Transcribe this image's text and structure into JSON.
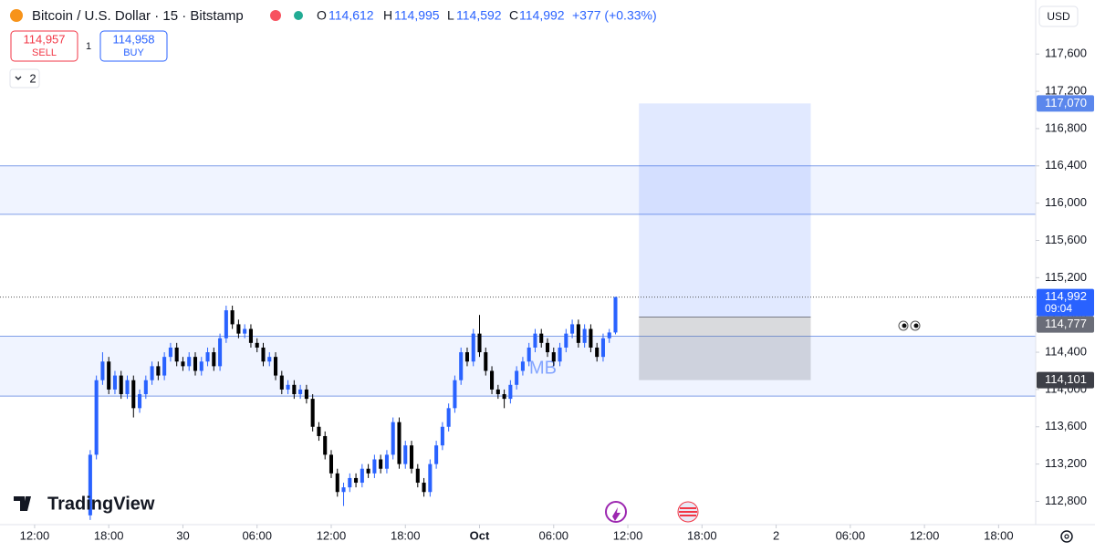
{
  "header": {
    "symbol": "Bitcoin / U.S. Dollar · 15 · Bitstamp",
    "o_label": "O",
    "o": "114,612",
    "h_label": "H",
    "h": "114,995",
    "l_label": "L",
    "l": "114,592",
    "c_label": "C",
    "c": "114,992",
    "change": "+377 (+0.33%)"
  },
  "trade": {
    "sell_price": "114,957",
    "sell": "SELL",
    "quantity": "1",
    "buy_price": "114,958",
    "buy": "BUY"
  },
  "indicators_toggle": "2",
  "currency": "USD",
  "logo": "TradingView",
  "chart_data": {
    "type": "candlestick",
    "annotation": "MB",
    "up_color": "#2962ff",
    "down_color": "#000000",
    "grid": false,
    "ylim": [
      112550,
      118180
    ],
    "yticks": [
      {
        "value": 112800,
        "label": "112,800"
      },
      {
        "value": 113200,
        "label": "113,200"
      },
      {
        "value": 113600,
        "label": "113,600"
      },
      {
        "value": 114000,
        "label": "114,000"
      },
      {
        "value": 114400,
        "label": "114,400"
      },
      {
        "value": 114800,
        "label": "114,800"
      },
      {
        "value": 115200,
        "label": "115,200"
      },
      {
        "value": 115600,
        "label": "115,600"
      },
      {
        "value": 116000,
        "label": "116,000"
      },
      {
        "value": 116400,
        "label": "116,400"
      },
      {
        "value": 116800,
        "label": "116,800"
      },
      {
        "value": 117200,
        "label": "117,200"
      },
      {
        "value": 117600,
        "label": "117,600"
      }
    ],
    "xlim": [
      -2.8,
      81
    ],
    "xticks": [
      {
        "value": 0,
        "label": "12:00"
      },
      {
        "value": 6,
        "label": "18:00"
      },
      {
        "value": 12,
        "label": "30"
      },
      {
        "value": 18,
        "label": "06:00"
      },
      {
        "value": 24,
        "label": "12:00"
      },
      {
        "value": 30,
        "label": "18:00"
      },
      {
        "value": 36,
        "label": "Oct"
      },
      {
        "value": 42,
        "label": "06:00"
      },
      {
        "value": 48,
        "label": "12:00"
      },
      {
        "value": 54,
        "label": "18:00"
      },
      {
        "value": 60,
        "label": "2"
      },
      {
        "value": 66,
        "label": "06:00"
      },
      {
        "value": 72,
        "label": "12:00"
      },
      {
        "value": 78,
        "label": "18:00"
      }
    ],
    "zones": [
      {
        "top": 116400,
        "bottom": 115880
      },
      {
        "top": 114572,
        "bottom": 113929
      }
    ],
    "position": {
      "start": 48.9,
      "end": 62.8,
      "target": 117070,
      "entry": 114777,
      "stop": 114101
    },
    "last_price": 114992,
    "price_badges": [
      {
        "value": 117070,
        "label": "117,070",
        "color": "#5b87ec"
      },
      {
        "value": 114992,
        "label": "114,992",
        "sub": "09:04",
        "color": "#2962ff"
      },
      {
        "value": 114777,
        "label": "114,777",
        "color": "#6a6d78"
      },
      {
        "value": 114101,
        "label": "114,101",
        "color": "#3d3f47"
      }
    ],
    "candles": [
      [
        4.5,
        112650,
        113350,
        112600,
        113300
      ],
      [
        5,
        113300,
        114150,
        113250,
        114100
      ],
      [
        5.5,
        114100,
        114400,
        114050,
        114300
      ],
      [
        6,
        114300,
        114350,
        113950,
        114000
      ],
      [
        6.5,
        114000,
        114200,
        113950,
        114150
      ],
      [
        7,
        114150,
        114200,
        113900,
        113950
      ],
      [
        7.5,
        113950,
        114150,
        113900,
        114100
      ],
      [
        8,
        114100,
        114150,
        113700,
        113800
      ],
      [
        8.5,
        113800,
        114000,
        113750,
        113950
      ],
      [
        9,
        113950,
        114150,
        113900,
        114100
      ],
      [
        9.5,
        114100,
        114300,
        114050,
        114250
      ],
      [
        10,
        114250,
        114300,
        114100,
        114150
      ],
      [
        10.5,
        114150,
        114400,
        114100,
        114350
      ],
      [
        11,
        114350,
        114500,
        114300,
        114450
      ],
      [
        11.5,
        114450,
        114500,
        114250,
        114300
      ],
      [
        12,
        114300,
        114350,
        114200,
        114250
      ],
      [
        12.5,
        114250,
        114400,
        114200,
        114350
      ],
      [
        13,
        114350,
        114400,
        114150,
        114200
      ],
      [
        13.5,
        114200,
        114350,
        114150,
        114300
      ],
      [
        14,
        114300,
        114450,
        114250,
        114400
      ],
      [
        14.5,
        114400,
        114450,
        114200,
        114250
      ],
      [
        15,
        114250,
        114600,
        114200,
        114550
      ],
      [
        15.5,
        114550,
        114900,
        114500,
        114850
      ],
      [
        16,
        114850,
        114900,
        114650,
        114700
      ],
      [
        16.5,
        114700,
        114750,
        114550,
        114600
      ],
      [
        17,
        114600,
        114700,
        114550,
        114650
      ],
      [
        17.5,
        114650,
        114700,
        114450,
        114500
      ],
      [
        18,
        114500,
        114550,
        114400,
        114450
      ],
      [
        18.5,
        114450,
        114500,
        114250,
        114300
      ],
      [
        19,
        114300,
        114400,
        114250,
        114350
      ],
      [
        19.5,
        114350,
        114400,
        114100,
        114150
      ],
      [
        20,
        114150,
        114200,
        113950,
        114000
      ],
      [
        20.5,
        114000,
        114100,
        113950,
        114050
      ],
      [
        21,
        114050,
        114100,
        113900,
        113950
      ],
      [
        21.5,
        113950,
        114050,
        113900,
        114000
      ],
      [
        22,
        114000,
        114050,
        113850,
        113900
      ],
      [
        22.5,
        113900,
        113950,
        113550,
        113600
      ],
      [
        23,
        113600,
        113650,
        113450,
        113500
      ],
      [
        23.5,
        113500,
        113550,
        113250,
        113300
      ],
      [
        24,
        113300,
        113350,
        113050,
        113100
      ],
      [
        24.5,
        113100,
        113150,
        112850,
        112900
      ],
      [
        25,
        112900,
        113000,
        112750,
        112950
      ],
      [
        25.5,
        112950,
        113100,
        112900,
        113050
      ],
      [
        26,
        113050,
        113100,
        112950,
        113000
      ],
      [
        26.5,
        113000,
        113200,
        112950,
        113150
      ],
      [
        27,
        113150,
        113200,
        113050,
        113100
      ],
      [
        27.5,
        113100,
        113300,
        113050,
        113250
      ],
      [
        28,
        113250,
        113300,
        113100,
        113150
      ],
      [
        28.5,
        113150,
        113350,
        113100,
        113300
      ],
      [
        29,
        113300,
        113700,
        113250,
        113650
      ],
      [
        29.5,
        113650,
        113700,
        113150,
        113200
      ],
      [
        30,
        113200,
        113450,
        113150,
        113400
      ],
      [
        30.5,
        113400,
        113450,
        113100,
        113150
      ],
      [
        31,
        113150,
        113200,
        112950,
        113000
      ],
      [
        31.5,
        113000,
        113050,
        112850,
        112900
      ],
      [
        32,
        112900,
        113250,
        112850,
        113200
      ],
      [
        32.5,
        113200,
        113450,
        113150,
        113400
      ],
      [
        33,
        113400,
        113650,
        113350,
        113600
      ],
      [
        33.5,
        113600,
        113850,
        113550,
        113800
      ],
      [
        34,
        113800,
        114150,
        113750,
        114100
      ],
      [
        34.5,
        114100,
        114450,
        114050,
        114400
      ],
      [
        35,
        114400,
        114450,
        114250,
        114300
      ],
      [
        35.5,
        114300,
        114650,
        114250,
        114600
      ],
      [
        36,
        114600,
        114800,
        114350,
        114400
      ],
      [
        36.5,
        114400,
        114450,
        114150,
        114200
      ],
      [
        37,
        114200,
        114250,
        113950,
        114000
      ],
      [
        37.5,
        114000,
        114050,
        113900,
        113950
      ],
      [
        38,
        113950,
        114000,
        113800,
        113900
      ],
      [
        38.5,
        113900,
        114100,
        113850,
        114050
      ],
      [
        39,
        114050,
        114250,
        114000,
        114200
      ],
      [
        39.5,
        114200,
        114350,
        114150,
        114300
      ],
      [
        40,
        114300,
        114500,
        114250,
        114450
      ],
      [
        40.5,
        114450,
        114650,
        114400,
        114600
      ],
      [
        41,
        114600,
        114650,
        114450,
        114500
      ],
      [
        41.5,
        114500,
        114550,
        114350,
        114400
      ],
      [
        42,
        114400,
        114450,
        114250,
        114300
      ],
      [
        42.5,
        114300,
        114500,
        114250,
        114450
      ],
      [
        43,
        114450,
        114650,
        114400,
        114600
      ],
      [
        43.5,
        114600,
        114750,
        114550,
        114700
      ],
      [
        44,
        114700,
        114750,
        114450,
        114500
      ],
      [
        44.5,
        114500,
        114700,
        114450,
        114650
      ],
      [
        45,
        114650,
        114700,
        114400,
        114450
      ],
      [
        45.5,
        114450,
        114500,
        114300,
        114350
      ],
      [
        46,
        114350,
        114600,
        114300,
        114550
      ],
      [
        46.5,
        114550,
        114650,
        114500,
        114612
      ],
      [
        47,
        114612,
        114995,
        114592,
        114992
      ]
    ]
  }
}
